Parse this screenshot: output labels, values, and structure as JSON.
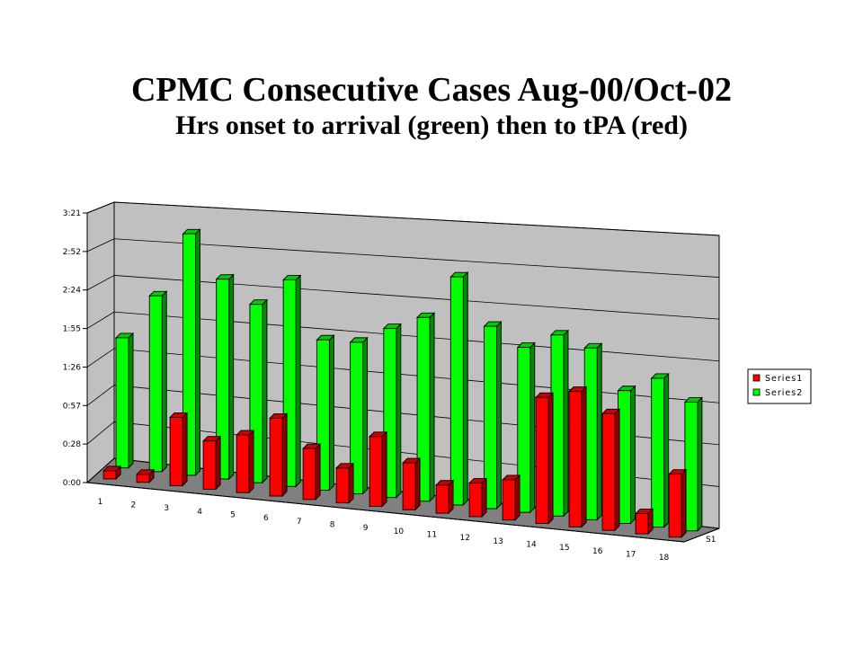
{
  "slide": {
    "title": "CPMC Consecutive Cases Aug-00/Oct-02",
    "subtitle": "Hrs onset to arrival (green) then to tPA (red)"
  },
  "chart_data": {
    "type": "bar",
    "style": "3d-clustered-columns",
    "categories": [
      "1",
      "2",
      "3",
      "4",
      "5",
      "6",
      "7",
      "8",
      "9",
      "10",
      "11",
      "12",
      "13",
      "14",
      "15",
      "16",
      "17",
      "18"
    ],
    "depth_labels": [
      "S1"
    ],
    "y_ticks": [
      "0:00",
      "0:28",
      "0:57",
      "1:26",
      "1:55",
      "2:24",
      "2:52",
      "3:21"
    ],
    "ylim_minutes": [
      0,
      201
    ],
    "series": [
      {
        "name": "Series1",
        "color": "#ff0000",
        "values": [
          6,
          6,
          51,
          36,
          43,
          58,
          38,
          26,
          52,
          35,
          21,
          25,
          30,
          94,
          101,
          87,
          15,
          47
        ]
      },
      {
        "name": "Series2",
        "color": "#00ff00",
        "values": [
          97,
          131,
          180,
          149,
          133,
          154,
          112,
          113,
          126,
          137,
          170,
          136,
          123,
          135,
          128,
          99,
          111,
          96
        ]
      }
    ],
    "grid": true,
    "legend_position": "right"
  },
  "colors": {
    "wall": "#c0c0c0",
    "floor": "#808080",
    "red": "#ff0000",
    "green": "#00ff00"
  }
}
